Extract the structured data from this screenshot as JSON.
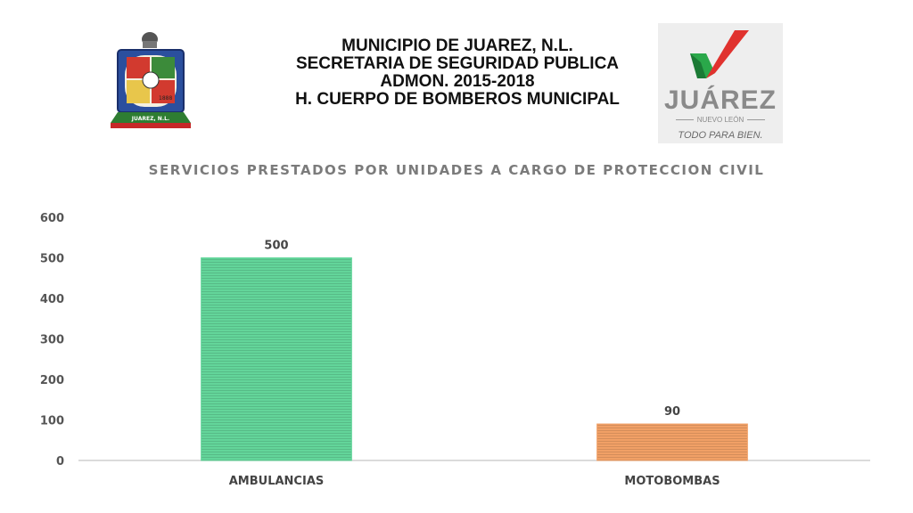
{
  "header": {
    "title_lines": [
      "MUNICIPIO DE JUAREZ, N.L.",
      "SECRETARIA DE SEGURIDAD PUBLICA",
      "ADMON. 2015-2018",
      "H. CUERPO DE BOMBEROS MUNICIPAL"
    ],
    "crest_text": "JUAREZ, N.L.",
    "logo_word": "JUÁREZ",
    "logo_sub": "NUEVO LEÓN",
    "logo_slogan": "TODO PARA BIEN."
  },
  "colors": {
    "ambulancias": "#63d59a",
    "motobombas": "#f1a066",
    "logo_red": "#e0322e",
    "logo_green": "#2aa84a"
  },
  "chart_data": {
    "type": "bar",
    "title": "SERVICIOS PRESTADOS POR UNIDADES A CARGO DE PROTECCION CIVIL",
    "categories": [
      "AMBULANCIAS",
      "MOTOBOMBAS"
    ],
    "values": [
      500,
      90
    ],
    "data_labels": [
      "500",
      "90"
    ],
    "ylim": [
      0,
      600
    ],
    "yticks": [
      0,
      100,
      200,
      300,
      400,
      500,
      600
    ],
    "grid": false,
    "legend": "none"
  }
}
